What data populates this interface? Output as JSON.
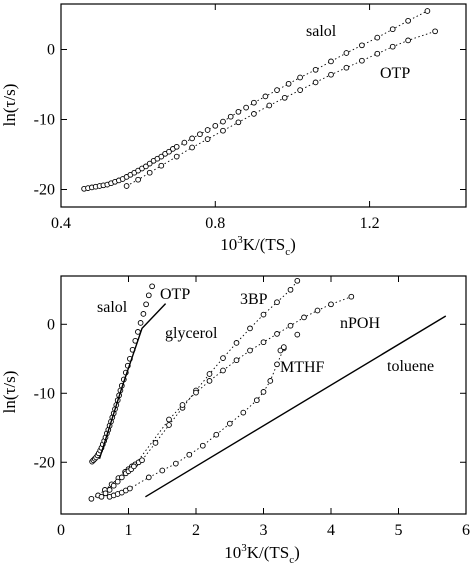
{
  "chart_data": [
    {
      "type": "scatter",
      "xlabel": "10³K/(TS_c)",
      "xlabel_parts": {
        "main": "10",
        "sup": "3",
        "mid": "K/(TS",
        "sub": "c",
        "end": ")"
      },
      "ylabel": "ln(τ/s)",
      "xlim": [
        0.4,
        1.45
      ],
      "ylim": [
        -22.5,
        6.5
      ],
      "xticks": [
        0.4,
        0.8,
        1.2
      ],
      "xtick_labels": [
        "0.4",
        "0.8",
        "1.2"
      ],
      "yticks": [
        -20,
        -10,
        0
      ],
      "ytick_labels": [
        "-20",
        "-10",
        "0"
      ],
      "series": [
        {
          "name": "salol",
          "line": "dotted",
          "x": [
            0.46,
            0.47,
            0.48,
            0.49,
            0.5,
            0.51,
            0.52,
            0.53,
            0.54,
            0.55,
            0.56,
            0.57,
            0.58,
            0.59,
            0.6,
            0.61,
            0.62,
            0.63,
            0.64,
            0.65,
            0.66,
            0.67,
            0.68,
            0.69,
            0.7,
            0.72,
            0.74,
            0.76,
            0.78,
            0.8,
            0.82,
            0.84,
            0.86,
            0.88,
            0.9,
            0.93,
            0.96,
            0.99,
            1.02,
            1.06,
            1.1,
            1.14,
            1.18,
            1.22,
            1.26,
            1.3,
            1.35
          ],
          "y": [
            -19.9,
            -19.8,
            -19.7,
            -19.6,
            -19.5,
            -19.4,
            -19.3,
            -19.1,
            -18.9,
            -18.7,
            -18.5,
            -18.2,
            -17.9,
            -17.6,
            -17.3,
            -17.0,
            -16.7,
            -16.3,
            -15.9,
            -15.6,
            -15.3,
            -14.9,
            -14.6,
            -14.2,
            -13.9,
            -13.3,
            -12.7,
            -12.1,
            -11.5,
            -10.9,
            -10.3,
            -9.6,
            -8.9,
            -8.3,
            -7.6,
            -6.7,
            -5.8,
            -4.9,
            -4.0,
            -2.9,
            -1.7,
            -0.5,
            0.6,
            1.7,
            2.9,
            4.1,
            5.5
          ]
        },
        {
          "name": "OTP",
          "line": "dotted",
          "x": [
            0.57,
            0.6,
            0.63,
            0.66,
            0.7,
            0.74,
            0.78,
            0.82,
            0.86,
            0.9,
            0.94,
            0.98,
            1.02,
            1.06,
            1.1,
            1.14,
            1.18,
            1.22,
            1.26,
            1.3,
            1.37
          ],
          "y": [
            -19.5,
            -18.6,
            -17.6,
            -16.6,
            -15.3,
            -14.0,
            -12.8,
            -11.6,
            -10.4,
            -9.2,
            -8.0,
            -6.9,
            -5.8,
            -4.7,
            -3.6,
            -2.6,
            -1.6,
            -0.6,
            0.4,
            1.3,
            2.6
          ]
        }
      ],
      "annotations": [
        "salol",
        "OTP"
      ]
    },
    {
      "type": "scatter",
      "xlabel": "10³K/(TS_c)",
      "xlabel_parts": {
        "main": "10",
        "sup": "3",
        "mid": "K/(TS",
        "sub": "c",
        "end": ")"
      },
      "ylabel": "ln(τ/s)",
      "xlim": [
        0,
        6
      ],
      "ylim": [
        -27.5,
        7
      ],
      "xticks": [
        0,
        1,
        2,
        3,
        4,
        5,
        6
      ],
      "xtick_labels": [
        "0",
        "1",
        "2",
        "3",
        "4",
        "5",
        "6"
      ],
      "yticks": [
        -20,
        -10,
        0
      ],
      "ytick_labels": [
        "-20",
        "-10",
        "0"
      ],
      "series": [
        {
          "name": "salol",
          "line": "none",
          "x": [
            0.46,
            0.48,
            0.5,
            0.52,
            0.54,
            0.56,
            0.58,
            0.6,
            0.62,
            0.64,
            0.66,
            0.68,
            0.7,
            0.72,
            0.74,
            0.76,
            0.78,
            0.8,
            0.82,
            0.84,
            0.86,
            0.88,
            0.9,
            0.93,
            0.96,
            0.99,
            1.02,
            1.06,
            1.1,
            1.14,
            1.18,
            1.22,
            1.26,
            1.3,
            1.35
          ],
          "y": [
            -19.9,
            -19.7,
            -19.5,
            -19.3,
            -19.0,
            -18.7,
            -18.3,
            -17.9,
            -17.4,
            -16.9,
            -16.4,
            -15.8,
            -15.3,
            -14.7,
            -14.1,
            -13.5,
            -12.9,
            -12.3,
            -11.7,
            -11.0,
            -10.3,
            -9.6,
            -8.9,
            -8.0,
            -7.0,
            -6.0,
            -5.0,
            -3.7,
            -2.4,
            -1.1,
            0.2,
            1.5,
            2.9,
            4.2,
            5.5
          ]
        },
        {
          "name": "OTP",
          "line": "solid",
          "x": [
            0.57,
            0.9,
            1.2,
            1.55
          ],
          "y": [
            -19.5,
            -9.2,
            -0.6,
            3.0
          ]
        },
        {
          "name": "glycerol",
          "line": "dotted",
          "x": [
            0.45,
            0.55,
            0.65,
            0.75,
            0.85,
            0.95,
            1.0,
            1.05,
            1.1,
            1.15,
            1.2,
            1.4,
            1.6,
            1.8,
            2.0,
            2.2,
            2.4,
            2.6,
            2.8,
            3.0,
            3.2,
            3.4,
            3.5
          ],
          "y": [
            -25.3,
            -24.8,
            -24.0,
            -23.2,
            -22.3,
            -21.4,
            -21.0,
            -20.6,
            -20.3,
            -20.0,
            -19.7,
            -17.2,
            -14.6,
            -12.1,
            -9.6,
            -7.2,
            -4.9,
            -2.7,
            -0.6,
            1.4,
            3.2,
            5.0,
            6.3
          ]
        },
        {
          "name": "3BP",
          "line": "dotted",
          "x": [
            0.6,
            0.66,
            0.72,
            0.78,
            0.84,
            0.9,
            0.96,
            1.0,
            1.04,
            1.08,
            1.6,
            1.8,
            2.0,
            2.2,
            2.4,
            2.6,
            2.8,
            3.0,
            3.2,
            3.4,
            3.6,
            3.8,
            4.0,
            4.3
          ],
          "y": [
            -25.0,
            -24.5,
            -24.0,
            -23.4,
            -22.8,
            -22.2,
            -21.6,
            -21.3,
            -21.0,
            -20.6,
            -13.8,
            -11.7,
            -9.9,
            -8.2,
            -6.7,
            -5.2,
            -3.8,
            -2.6,
            -1.4,
            -0.2,
            1.0,
            2.0,
            2.9,
            4.0
          ]
        },
        {
          "name": "MTHF",
          "line": "dotted",
          "x": [
            0.72,
            0.78,
            0.84,
            0.9,
            0.96,
            1.02,
            1.3,
            1.5,
            1.7,
            1.9,
            2.1,
            2.3,
            2.5,
            2.7,
            2.9,
            3.0,
            3.1,
            3.2,
            3.3
          ],
          "y": [
            -25.0,
            -24.8,
            -24.6,
            -24.4,
            -24.1,
            -23.8,
            -22.2,
            -21.2,
            -20.2,
            -18.9,
            -17.6,
            -16.0,
            -14.4,
            -12.8,
            -11.0,
            -9.8,
            -8.2,
            -5.8,
            -3.5
          ]
        },
        {
          "name": "nPOH",
          "line": "none",
          "x": [
            3.25,
            3.3,
            3.5
          ],
          "y": [
            -3.8,
            -3.3,
            -1.5
          ]
        },
        {
          "name": "toluene",
          "line": "solid",
          "x": [
            1.25,
            5.7
          ],
          "y": [
            -25.0,
            1.2
          ]
        }
      ],
      "annotations": [
        "salol",
        "OTP",
        "glycerol",
        "3BP",
        "nPOH",
        "MTHF",
        "toluene"
      ]
    }
  ]
}
